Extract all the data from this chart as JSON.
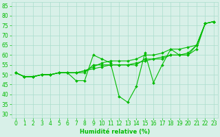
{
  "x": [
    0,
    1,
    2,
    3,
    4,
    5,
    6,
    7,
    8,
    9,
    10,
    11,
    12,
    13,
    14,
    15,
    16,
    17,
    18,
    19,
    20,
    21,
    22,
    23
  ],
  "line1": [
    51,
    49,
    49,
    50,
    50,
    51,
    51,
    47,
    47,
    60,
    58,
    56,
    39,
    36,
    44,
    61,
    46,
    55,
    63,
    60,
    60,
    63,
    76,
    77
  ],
  "line2": [
    51,
    49,
    49,
    50,
    50,
    51,
    51,
    51,
    51,
    55,
    55,
    55,
    55,
    55,
    55,
    58,
    58,
    58,
    60,
    60,
    60,
    65,
    76,
    77
  ],
  "line3": [
    51,
    49,
    49,
    50,
    50,
    51,
    51,
    51,
    52,
    53,
    54,
    55,
    55,
    55,
    56,
    57,
    58,
    59,
    60,
    60,
    61,
    65,
    76,
    77
  ],
  "line4": [
    51,
    49,
    49,
    50,
    50,
    51,
    51,
    51,
    52,
    54,
    56,
    57,
    57,
    57,
    58,
    60,
    60,
    61,
    63,
    63,
    64,
    65,
    76,
    77
  ],
  "bg_color": "#d8f0e8",
  "grid_color": "#aaddcc",
  "line_color": "#00bb00",
  "xlabel": "Humidité relative (%)",
  "ylabel_ticks": [
    30,
    35,
    40,
    45,
    50,
    55,
    60,
    65,
    70,
    75,
    80,
    85
  ],
  "ylim": [
    28,
    87
  ],
  "xlim": [
    -0.5,
    23.5
  ],
  "xlabel_fontsize": 6,
  "tick_fontsize": 5.5,
  "marker_size": 2.0,
  "line_width": 0.8
}
